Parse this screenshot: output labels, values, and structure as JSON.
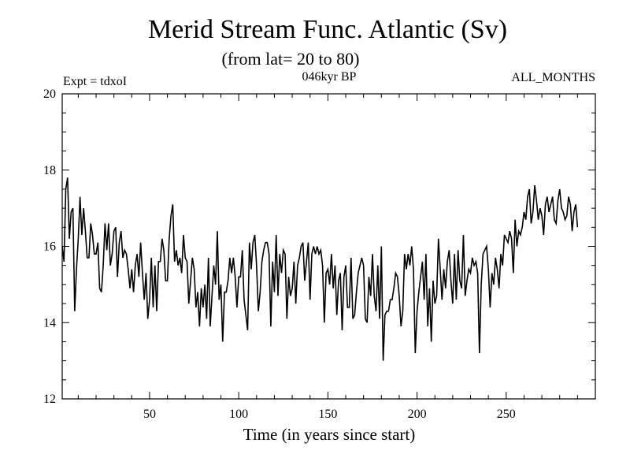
{
  "chart_data": {
    "type": "line",
    "title": "Merid Stream Func. Atlantic (Sv)",
    "subtitle": "(from lat= 20 to 80)",
    "left_label": "Expt = tdxoI",
    "center_label": "046kyr BP",
    "right_label": "ALL_MONTHS",
    "xlabel": "Time (in years since start)",
    "ylabel": "",
    "xlim": [
      1,
      300
    ],
    "ylim": [
      12,
      20
    ],
    "x_ticks": [
      50,
      100,
      150,
      200,
      250
    ],
    "y_ticks": [
      12,
      14,
      16,
      18,
      20
    ],
    "grid": false,
    "line_color": "#000000",
    "series": [
      {
        "x_start": 1,
        "x_step": 1,
        "values": [
          16.0,
          15.6,
          17.5,
          17.8,
          16.2,
          16.9,
          17.0,
          14.3,
          15.4,
          16.2,
          17.3,
          16.3,
          17.0,
          16.4,
          15.7,
          15.7,
          16.6,
          16.3,
          15.8,
          15.8,
          16.1,
          14.9,
          14.8,
          15.5,
          16.6,
          15.9,
          16.6,
          15.5,
          15.8,
          16.4,
          16.5,
          15.2,
          16.1,
          16.4,
          15.7,
          15.9,
          15.8,
          15.4,
          14.9,
          15.4,
          14.8,
          15.5,
          15.8,
          15.2,
          16.1,
          15.3,
          14.6,
          15.3,
          14.1,
          14.6,
          15.7,
          14.4,
          15.5,
          14.3,
          15.6,
          15.6,
          16.2,
          15.9,
          15.1,
          15.1,
          16.2,
          16.8,
          17.1,
          15.6,
          15.9,
          15.5,
          15.7,
          15.3,
          16.3,
          15.7,
          15.6,
          14.5,
          15.1,
          15.7,
          15.4,
          14.4,
          14.8,
          13.9,
          14.9,
          14.4,
          15.0,
          14.1,
          15.7,
          13.9,
          14.7,
          15.5,
          15.0,
          16.4,
          14.6,
          15.0,
          13.5,
          14.8,
          14.8,
          15.1,
          15.7,
          15.3,
          15.7,
          15.2,
          14.4,
          15.2,
          15.2,
          15.9,
          14.6,
          14.2,
          13.8,
          16.1,
          15.4,
          16.1,
          16.3,
          15.5,
          14.3,
          14.8,
          15.6,
          15.9,
          16.1,
          16.1,
          15.8,
          13.9,
          15.6,
          14.8,
          16.3,
          14.7,
          15.8,
          15.3,
          15.9,
          15.8,
          14.1,
          15.2,
          14.7,
          14.9,
          15.6,
          14.5,
          15.5,
          15.7,
          16.0,
          16.1,
          15.1,
          15.6,
          16.1,
          14.6,
          15.8,
          16.0,
          15.8,
          16.0,
          15.8,
          15.9,
          15.5,
          14.0,
          15.3,
          15.4,
          15.0,
          15.8,
          14.9,
          15.5,
          14.2,
          15.1,
          15.3,
          13.8,
          15.2,
          15.5,
          14.4,
          14.4,
          15.7,
          14.1,
          14.2,
          14.8,
          15.3,
          15.5,
          15.7,
          15.5,
          14.1,
          14.0,
          15.2,
          14.7,
          15.8,
          14.7,
          14.3,
          15.5,
          14.1,
          16.0,
          13.0,
          14.2,
          14.3,
          14.3,
          14.6,
          14.6,
          14.9,
          15.3,
          15.2,
          14.7,
          13.9,
          14.3,
          15.8,
          15.4,
          15.8,
          15.5,
          16.0,
          15.4,
          13.2,
          14.3,
          14.8,
          15.2,
          15.6,
          14.6,
          15.8,
          13.9,
          14.9,
          13.5,
          15.1,
          14.5,
          14.7,
          16.2,
          15.4,
          14.6,
          15.4,
          14.9,
          15.6,
          15.9,
          15.1,
          14.5,
          15.8,
          14.6,
          15.9,
          15.1,
          14.9,
          16.3,
          14.7,
          15.1,
          15.4,
          15.3,
          15.7,
          15.5,
          15.6,
          15.3,
          13.2,
          15.0,
          15.8,
          15.9,
          16.0,
          15.4,
          14.4,
          15.3,
          15.0,
          15.7,
          15.4,
          14.9,
          15.8,
          15.5,
          16.3,
          16.2,
          16.1,
          16.4,
          16.2,
          15.3,
          16.7,
          16.0,
          16.4,
          16.3,
          16.5,
          16.9,
          16.7,
          17.3,
          17.5,
          16.6,
          16.9,
          17.6,
          17.2,
          16.7,
          17.0,
          16.8,
          16.3,
          17.1,
          17.3,
          16.9,
          17.1,
          17.3,
          16.7,
          16.6,
          17.2,
          17.5,
          17.0,
          16.9,
          16.7,
          16.8,
          17.3,
          17.1,
          16.4,
          16.9,
          17.1,
          16.5
        ]
      }
    ]
  }
}
